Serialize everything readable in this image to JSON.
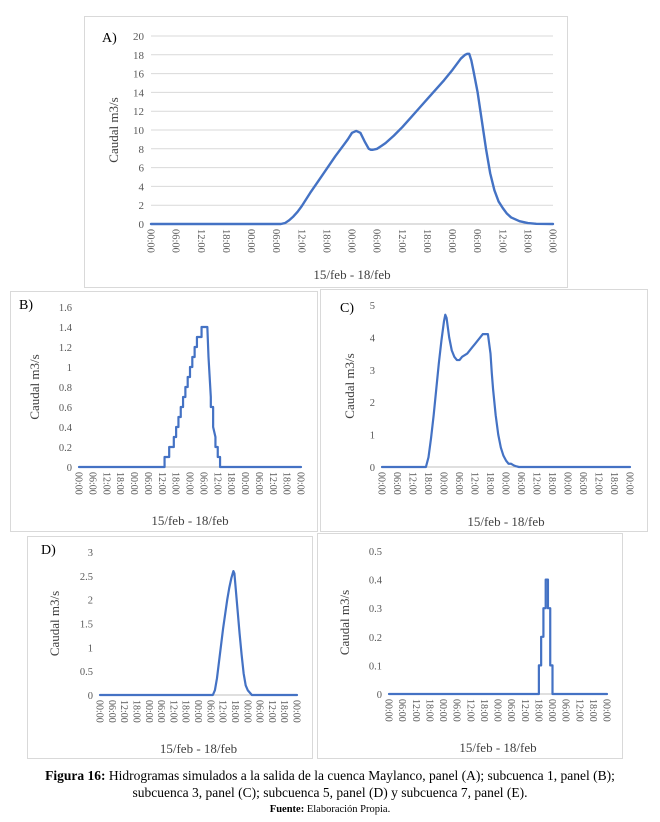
{
  "colors": {
    "line": "#4472c4",
    "grid": "#d9d9d9",
    "axis": "#bfbfbf",
    "tick_text": "#595959"
  },
  "caption": {
    "label": "Figura 16:",
    "line1": "Hidrogramas simulados a la salida de la cuenca Maylanco, panel (A); subcuenca 1, panel (B);",
    "line2": "subcuenca 3, panel (C); subcuenca 5, panel (D) y subcuenca 7, panel (E).",
    "source_label": "Fuente:",
    "source_text": "Elaboración Propia."
  },
  "chart_data": [
    {
      "id": "A",
      "panel_label": "A)",
      "type": "line",
      "ylabel": "Caudal m3/s",
      "xlabel": "15/feb - 18/feb",
      "ylim": [
        0,
        20
      ],
      "yticks": [
        0,
        2,
        4,
        6,
        8,
        10,
        12,
        14,
        16,
        18,
        20
      ],
      "xlim": [
        0,
        96
      ],
      "xticks": [
        "00:00",
        "06:00",
        "12:00",
        "18:00",
        "00:00",
        "06:00",
        "12:00",
        "18:00",
        "00:00",
        "06:00",
        "12:00",
        "18:00",
        "00:00",
        "06:00",
        "12:00",
        "18:00",
        "00:00"
      ],
      "grid": true,
      "series": [
        {
          "x": [
            0,
            31,
            32,
            33,
            34,
            35,
            36,
            38,
            40,
            42,
            44,
            46,
            47,
            48,
            49,
            50,
            51,
            52,
            52.5,
            53,
            54,
            55,
            56,
            58,
            60,
            62,
            64,
            66,
            68,
            70,
            72,
            73,
            74,
            75,
            75.5,
            76,
            76.5,
            77,
            78,
            79,
            80,
            81,
            82,
            83,
            84,
            85,
            86,
            88,
            90,
            92,
            96
          ],
          "y": [
            0,
            0,
            0.1,
            0.4,
            0.8,
            1.3,
            1.9,
            3.3,
            4.6,
            5.9,
            7.2,
            8.4,
            9.0,
            9.7,
            9.9,
            9.7,
            8.8,
            8.0,
            7.9,
            7.9,
            8.0,
            8.3,
            8.6,
            9.4,
            10.3,
            11.3,
            12.3,
            13.3,
            14.3,
            15.3,
            16.4,
            17.0,
            17.6,
            18.0,
            18.1,
            18.1,
            17.4,
            16.3,
            14.0,
            11.0,
            8.0,
            5.4,
            3.6,
            2.4,
            1.7,
            1.1,
            0.7,
            0.3,
            0.1,
            0.02,
            0.0
          ]
        }
      ]
    },
    {
      "id": "B",
      "panel_label": "B)",
      "type": "line",
      "ylabel": "Caudal m3/s",
      "xlabel": "15/feb - 18/feb",
      "ylim": [
        0,
        1.6
      ],
      "yticks": [
        0,
        0.2,
        0.4,
        0.6,
        0.8,
        1,
        1.2,
        1.4,
        1.6
      ],
      "ytick_labels": [
        "0",
        "0.2",
        "0.4",
        "0.6",
        "0.8",
        "1",
        "1.2",
        "1.4",
        "1.6"
      ],
      "xlim": [
        0,
        96
      ],
      "xticks": [
        "00:00",
        "06:00",
        "12:00",
        "18:00",
        "00:00",
        "06:00",
        "12:00",
        "18:00",
        "00:00",
        "06:00",
        "12:00",
        "18:00",
        "00:00",
        "06:00",
        "12:00",
        "18:00",
        "00:00"
      ],
      "grid": false,
      "series": [
        {
          "x": [
            0,
            37,
            37,
            39,
            39,
            41,
            41,
            42,
            42,
            43,
            43,
            44,
            44,
            45,
            45,
            46,
            46,
            47,
            47,
            48,
            48,
            49,
            49,
            50,
            50,
            51,
            51,
            52,
            52,
            53,
            53,
            54,
            54,
            55.5,
            56,
            57,
            57,
            58,
            58,
            59,
            59,
            60,
            60,
            61,
            61,
            96
          ],
          "y": [
            0,
            0,
            0.1,
            0.1,
            0.2,
            0.2,
            0.3,
            0.3,
            0.4,
            0.4,
            0.5,
            0.5,
            0.6,
            0.6,
            0.7,
            0.7,
            0.8,
            0.8,
            0.9,
            0.9,
            1.0,
            1.0,
            1.1,
            1.1,
            1.2,
            1.2,
            1.3,
            1.3,
            1.3,
            1.3,
            1.4,
            1.4,
            1.4,
            1.4,
            1.1,
            0.7,
            0.6,
            0.6,
            0.4,
            0.3,
            0.2,
            0.2,
            0.1,
            0.1,
            0.0,
            0.0
          ]
        }
      ]
    },
    {
      "id": "C",
      "panel_label": "C)",
      "type": "line",
      "ylabel": "Caudal m3/s",
      "xlabel": "15/feb - 18/feb",
      "ylim": [
        0,
        5
      ],
      "yticks": [
        0,
        1,
        2,
        3,
        4,
        5
      ],
      "xlim": [
        0,
        96
      ],
      "xticks": [
        "00:00",
        "06:00",
        "12:00",
        "18:00",
        "00:00",
        "06:00",
        "12:00",
        "18:00",
        "00:00",
        "06:00",
        "12:00",
        "18:00",
        "00:00",
        "06:00",
        "12:00",
        "18:00",
        "00:00"
      ],
      "grid": false,
      "series": [
        {
          "x": [
            0,
            17,
            18,
            19,
            20,
            21,
            22,
            23,
            24,
            24.5,
            25,
            26,
            27,
            28,
            29,
            30,
            31,
            32,
            33,
            34,
            35,
            36,
            37,
            38,
            39,
            40,
            41,
            42,
            42.5,
            43,
            44,
            45,
            46,
            47,
            48,
            49,
            50,
            51,
            52,
            53,
            54,
            96
          ],
          "y": [
            0,
            0,
            0.3,
            0.9,
            1.6,
            2.4,
            3.2,
            3.9,
            4.5,
            4.7,
            4.6,
            4.0,
            3.6,
            3.4,
            3.3,
            3.3,
            3.4,
            3.45,
            3.5,
            3.6,
            3.7,
            3.8,
            3.9,
            4.0,
            4.1,
            4.1,
            4.1,
            3.5,
            2.9,
            2.4,
            1.6,
            1.0,
            0.6,
            0.35,
            0.2,
            0.1,
            0.1,
            0.05,
            0.02,
            0.0,
            0.0,
            0.0
          ]
        }
      ]
    },
    {
      "id": "D",
      "panel_label": "D)",
      "type": "line",
      "ylabel": "Caudal m3/s",
      "xlabel": "15/feb - 18/feb",
      "ylim": [
        0,
        3
      ],
      "yticks": [
        0,
        0.5,
        1,
        1.5,
        2,
        2.5,
        3
      ],
      "ytick_labels": [
        "0",
        "0.5",
        "1",
        "1.5",
        "2",
        "2.5",
        "3"
      ],
      "xlim": [
        0,
        96
      ],
      "xticks": [
        "00:00",
        "06:00",
        "12:00",
        "18:00",
        "00:00",
        "06:00",
        "12:00",
        "18:00",
        "00:00",
        "06:00",
        "12:00",
        "18:00",
        "00:00",
        "06:00",
        "12:00",
        "18:00",
        "00:00"
      ],
      "grid": false,
      "series": [
        {
          "x": [
            0,
            55,
            56,
            57,
            58,
            59,
            60,
            61,
            62,
            63,
            64,
            65,
            65.5,
            66,
            67,
            68,
            69,
            70,
            71,
            72,
            73,
            74,
            96
          ],
          "y": [
            0,
            0,
            0.1,
            0.35,
            0.7,
            1.05,
            1.4,
            1.7,
            2.0,
            2.25,
            2.45,
            2.6,
            2.55,
            2.3,
            1.8,
            1.3,
            0.85,
            0.45,
            0.2,
            0.1,
            0.05,
            0.0,
            0.0
          ]
        }
      ]
    },
    {
      "id": "E",
      "panel_label": "",
      "type": "line",
      "ylabel": "Caudal m3/s",
      "xlabel": "15/feb - 18/feb",
      "ylim": [
        0,
        0.5
      ],
      "yticks": [
        0,
        0.1,
        0.2,
        0.3,
        0.4,
        0.5
      ],
      "ytick_labels": [
        "0",
        "0.1",
        "0.2",
        "0.3",
        "0.4",
        "0.5"
      ],
      "xlim": [
        0,
        96
      ],
      "xticks": [
        "00:00",
        "06:00",
        "12:00",
        "18:00",
        "00:00",
        "06:00",
        "12:00",
        "18:00",
        "00:00",
        "06:00",
        "12:00",
        "18:00",
        "00:00",
        "06:00",
        "12:00",
        "18:00",
        "00:00"
      ],
      "grid": false,
      "series": [
        {
          "x": [
            0,
            66,
            66,
            67,
            67,
            68,
            68,
            69,
            69,
            70,
            70,
            71,
            71,
            72,
            72,
            73,
            73,
            96
          ],
          "y": [
            0,
            0,
            0.1,
            0.1,
            0.2,
            0.2,
            0.3,
            0.3,
            0.4,
            0.4,
            0.3,
            0.3,
            0.1,
            0.1,
            0.0,
            0.0,
            0.0,
            0.0
          ]
        }
      ]
    }
  ]
}
